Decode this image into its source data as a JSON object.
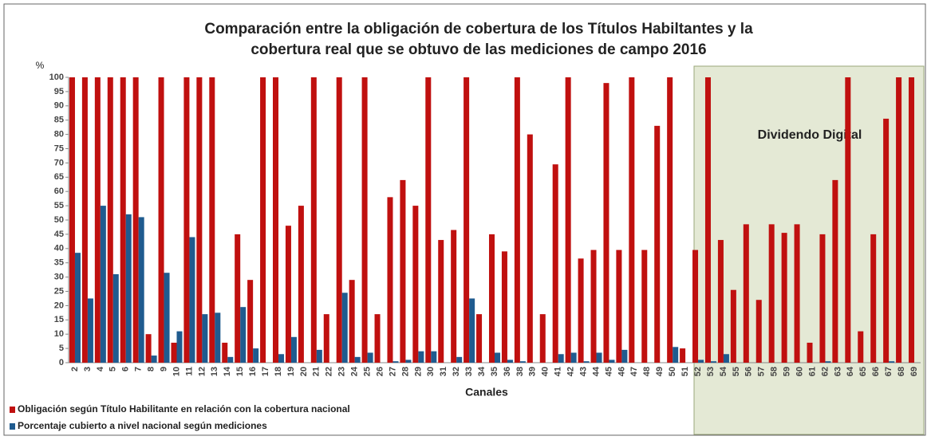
{
  "chart_data": {
    "type": "bar",
    "title": "Comparación entre la obligación de cobertura de los Títulos Habiltantes y la",
    "subtitle": "cobertura real que se obtuvo de las mediciones de campo 2016",
    "y_label": "%",
    "x_label": "Canales",
    "annotation": "Dividendo Digital",
    "categories": [
      "2",
      "3",
      "4",
      "5",
      "6",
      "7",
      "8",
      "9",
      "10",
      "11",
      "12",
      "13",
      "14",
      "15",
      "16",
      "17",
      "18",
      "19",
      "20",
      "21",
      "22",
      "23",
      "24",
      "25",
      "26",
      "27",
      "28",
      "29",
      "30",
      "31",
      "32",
      "33",
      "34",
      "35",
      "36",
      "38",
      "39",
      "40",
      "41",
      "42",
      "43",
      "44",
      "45",
      "46",
      "47",
      "48",
      "49",
      "50",
      "51",
      "52",
      "53",
      "54",
      "55",
      "56",
      "57",
      "58",
      "59",
      "60",
      "61",
      "62",
      "63",
      "64",
      "65",
      "66",
      "67",
      "68",
      "69"
    ],
    "series": [
      {
        "name": "Obligación según Título Habilitante en relación con la cobertura nacional",
        "color": "#c0100f",
        "values": [
          100,
          100,
          100,
          100,
          100,
          100,
          10,
          100,
          7,
          100,
          100,
          100,
          7,
          45,
          29,
          100,
          100,
          48,
          55,
          100,
          17,
          100,
          29,
          100,
          17,
          58,
          64,
          55,
          100,
          43,
          46.5,
          100,
          17,
          45,
          39,
          100,
          80,
          17,
          69.5,
          100,
          36.5,
          39.5,
          98,
          39.5,
          100,
          39.5,
          83,
          100,
          5,
          39.5,
          100,
          43,
          25.5,
          48.5,
          22,
          48.5,
          45.5,
          48.5,
          7,
          45,
          64,
          100,
          11,
          45,
          85.5,
          100,
          100
        ]
      },
      {
        "name": "Porcentaje cubierto a nivel nacional según mediciones",
        "color": "#1f5b8f",
        "values": [
          38.5,
          22.5,
          55,
          31,
          52,
          51,
          2.5,
          31.5,
          11,
          44,
          17,
          17.5,
          2,
          19.5,
          5,
          0,
          3,
          9,
          0,
          4.5,
          0,
          24.5,
          2,
          3.5,
          0,
          0.5,
          1,
          4,
          4,
          0,
          2,
          22.5,
          0,
          3.5,
          1,
          0.5,
          0,
          0,
          3,
          3.5,
          0.5,
          3.5,
          1,
          4.5,
          0,
          0,
          0,
          5.5,
          0,
          1,
          0.5,
          3,
          0,
          0,
          0,
          0,
          0,
          0,
          0,
          0.5,
          0,
          0,
          0,
          0,
          0.5,
          0,
          0
        ]
      }
    ],
    "ylim": [
      0,
      100
    ],
    "yticks": [
      0,
      5,
      10,
      15,
      20,
      25,
      30,
      35,
      40,
      45,
      50,
      55,
      60,
      65,
      70,
      75,
      80,
      85,
      90,
      95,
      100
    ],
    "grid": false,
    "legend": "bottom-left"
  }
}
